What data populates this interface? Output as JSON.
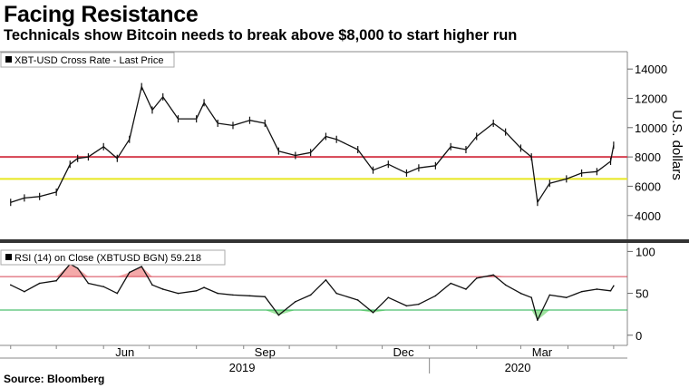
{
  "title": "Facing Resistance",
  "subtitle": "Technicals show Bitcoin needs to break above $8,000 to start higher run",
  "source": "Source: Bloomberg",
  "chart_data": [
    {
      "type": "line",
      "legend": "XBT-USD Cross Rate - Last Price",
      "ylabel": "U.S. dollars",
      "ylim": [
        2500,
        15000
      ],
      "yticks": [
        4000,
        6000,
        8000,
        10000,
        12000,
        14000
      ],
      "ytick_labels": [
        "4000",
        "6000",
        "8000",
        "10000",
        "12000",
        "14000"
      ],
      "reference_lines": [
        {
          "value": 8000,
          "color": "#d64050"
        },
        {
          "value": 6500,
          "color": "#e8e820"
        }
      ],
      "x": [
        "2019-04-01",
        "2019-04-10",
        "2019-04-20",
        "2019-05-01",
        "2019-05-10",
        "2019-05-15",
        "2019-05-22",
        "2019-06-01",
        "2019-06-10",
        "2019-06-18",
        "2019-06-26",
        "2019-07-03",
        "2019-07-10",
        "2019-07-20",
        "2019-08-01",
        "2019-08-06",
        "2019-08-15",
        "2019-08-25",
        "2019-09-05",
        "2019-09-15",
        "2019-09-24",
        "2019-10-05",
        "2019-10-15",
        "2019-10-25",
        "2019-11-01",
        "2019-11-15",
        "2019-11-25",
        "2019-12-05",
        "2019-12-17",
        "2019-12-25",
        "2020-01-05",
        "2020-01-15",
        "2020-01-25",
        "2020-02-01",
        "2020-02-12",
        "2020-02-20",
        "2020-03-01",
        "2020-03-08",
        "2020-03-12",
        "2020-03-20",
        "2020-03-31",
        "2020-04-10",
        "2020-04-20",
        "2020-04-29",
        "2020-05-01"
      ],
      "values": [
        4900,
        5200,
        5300,
        5600,
        7500,
        7900,
        8000,
        8700,
        7900,
        9200,
        12800,
        11200,
        12100,
        10600,
        10600,
        11700,
        10300,
        10150,
        10500,
        10300,
        8400,
        8100,
        8300,
        9400,
        9200,
        8500,
        7100,
        7500,
        6900,
        7250,
        7400,
        8700,
        8500,
        9400,
        10300,
        9700,
        8600,
        8000,
        4900,
        6200,
        6500,
        6900,
        7000,
        7700,
        8800
      ]
    },
    {
      "type": "line",
      "legend": "RSI (14)  on Close (XBTUSD BGN) 59.218",
      "ylim": [
        -10,
        108
      ],
      "yticks": [
        0,
        50,
        100
      ],
      "ytick_labels": [
        "0",
        "50",
        "100"
      ],
      "reference_lines": [
        {
          "value": 70,
          "color": "#d64050"
        },
        {
          "value": 30,
          "color": "#22b14c"
        }
      ],
      "x": [
        "2019-04-01",
        "2019-04-10",
        "2019-04-20",
        "2019-05-01",
        "2019-05-10",
        "2019-05-15",
        "2019-05-22",
        "2019-06-01",
        "2019-06-10",
        "2019-06-18",
        "2019-06-26",
        "2019-07-03",
        "2019-07-10",
        "2019-07-20",
        "2019-08-01",
        "2019-08-06",
        "2019-08-15",
        "2019-08-25",
        "2019-09-05",
        "2019-09-15",
        "2019-09-24",
        "2019-10-05",
        "2019-10-15",
        "2019-10-25",
        "2019-11-01",
        "2019-11-15",
        "2019-11-25",
        "2019-12-05",
        "2019-12-17",
        "2019-12-25",
        "2020-01-05",
        "2020-01-15",
        "2020-01-25",
        "2020-02-01",
        "2020-02-12",
        "2020-02-20",
        "2020-03-01",
        "2020-03-08",
        "2020-03-12",
        "2020-03-20",
        "2020-03-31",
        "2020-04-10",
        "2020-04-20",
        "2020-04-29",
        "2020-05-01"
      ],
      "values": [
        60,
        52,
        62,
        65,
        85,
        80,
        62,
        58,
        50,
        75,
        82,
        60,
        55,
        50,
        53,
        57,
        50,
        48,
        47,
        46,
        24,
        40,
        48,
        66,
        50,
        42,
        27,
        45,
        35,
        37,
        47,
        62,
        55,
        68,
        72,
        60,
        50,
        45,
        18,
        48,
        45,
        52,
        55,
        53,
        59
      ]
    }
  ],
  "x_axis": {
    "month_labels": [
      {
        "label": "Jun",
        "date": "2019-06-15"
      },
      {
        "label": "Sep",
        "date": "2019-09-15"
      },
      {
        "label": "Dec",
        "date": "2019-12-15"
      },
      {
        "label": "Mar",
        "date": "2020-03-15"
      }
    ],
    "year_labels": [
      {
        "label": "2019",
        "date": "2019-08-31"
      },
      {
        "label": "2020",
        "date": "2020-02-28"
      }
    ],
    "year_divider": "2020-01-01"
  }
}
